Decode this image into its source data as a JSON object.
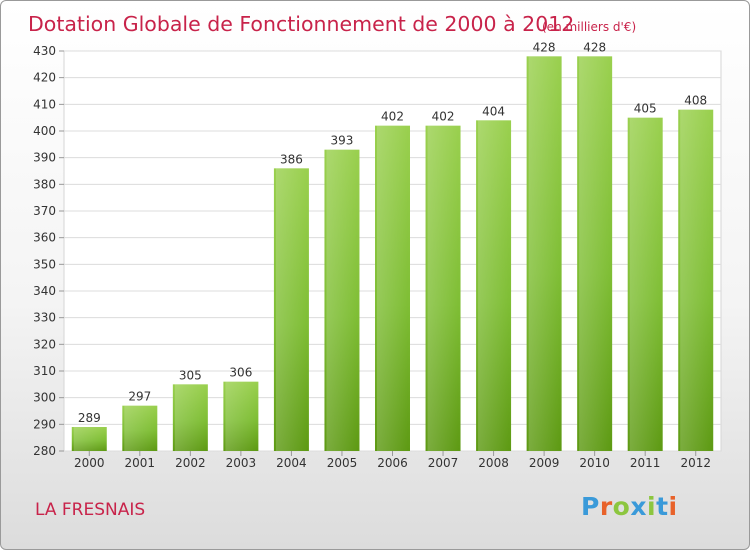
{
  "chart_data": {
    "type": "bar",
    "title": "Dotation Globale de Fonctionnement de 2000 à 2012",
    "subtitle": "(en milliers d'€)",
    "categories": [
      "2000",
      "2001",
      "2002",
      "2003",
      "2004",
      "2005",
      "2006",
      "2007",
      "2008",
      "2009",
      "2010",
      "2011",
      "2012"
    ],
    "values": [
      289,
      297,
      305,
      306,
      386,
      393,
      402,
      402,
      404,
      428,
      428,
      405,
      408
    ],
    "ylim": [
      280,
      430
    ],
    "yticks": [
      280,
      290,
      300,
      310,
      320,
      330,
      340,
      350,
      360,
      370,
      380,
      390,
      400,
      410,
      420,
      430
    ],
    "xlabel": "",
    "ylabel": "",
    "grid": true,
    "bar_color": "#7ec63a"
  },
  "place_name": "LA FRESNAIS",
  "logo": {
    "text": "Proxiti",
    "letter_colors": [
      "#3a9ad9",
      "#e8622a",
      "#8cc63f",
      "#3a9ad9",
      "#8cc63f",
      "#3a9ad9",
      "#e8622a"
    ]
  }
}
